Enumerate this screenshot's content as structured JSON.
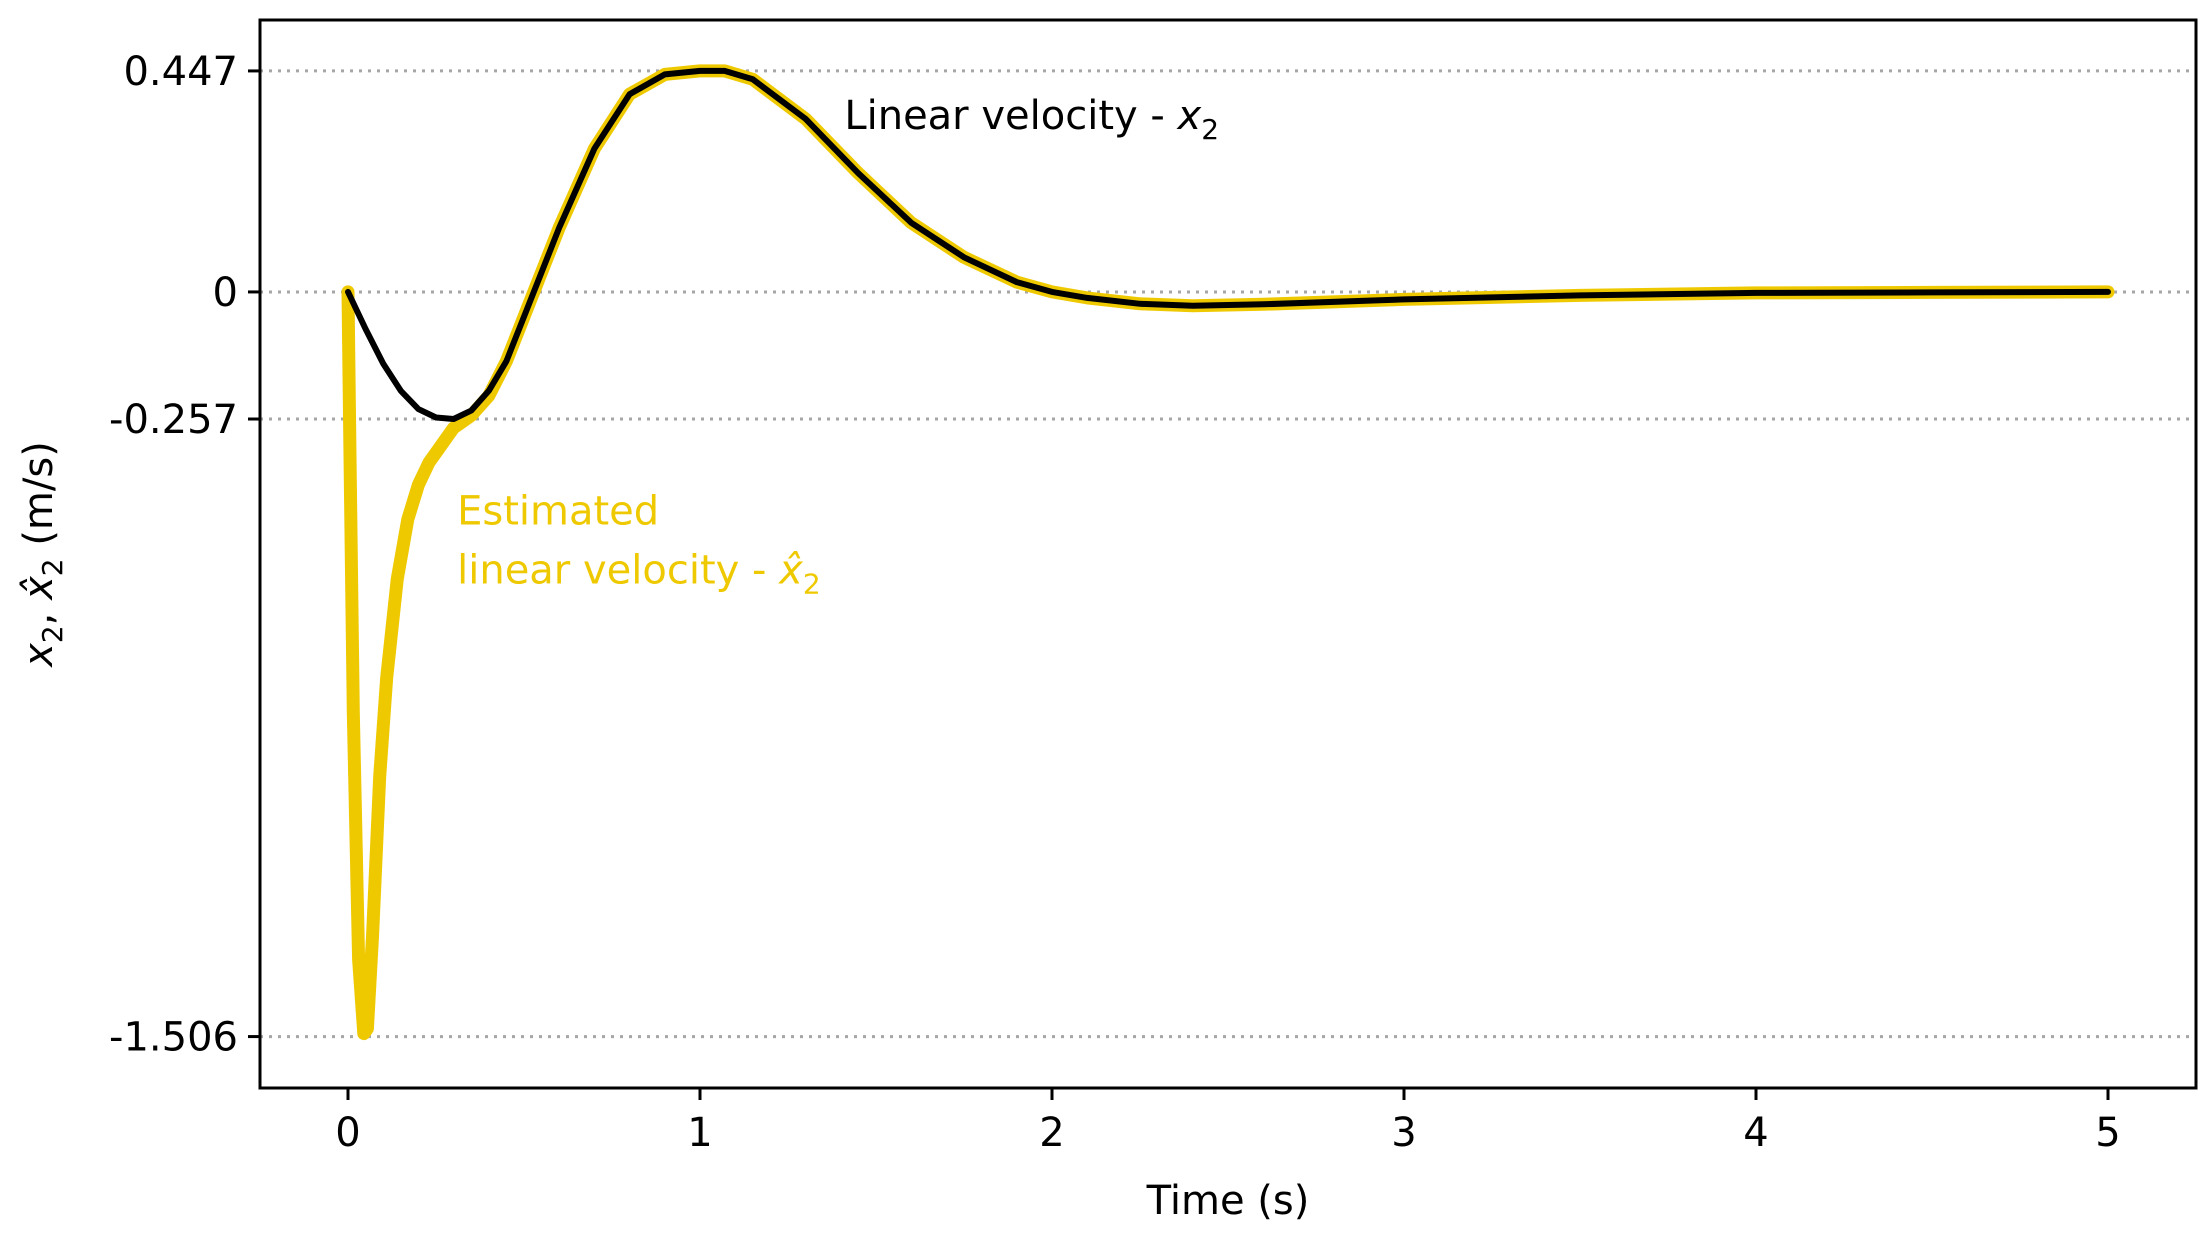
{
  "chart_data": {
    "type": "line",
    "title": "",
    "xlabel": "Time (s)",
    "ylabel": {
      "x2": "x",
      "x2_sub": "2",
      "sep": ", ",
      "hat": "x̂",
      "hat_sub": "2",
      "units": " (m/s)"
    },
    "xlim": [
      -0.25,
      5.25
    ],
    "ylim": [
      -1.61,
      0.55
    ],
    "x_ticks": [
      0,
      1,
      2,
      3,
      4,
      5
    ],
    "x_tick_labels": [
      "0",
      "1",
      "2",
      "3",
      "4",
      "5"
    ],
    "y_ticks": [
      0.447,
      0,
      -0.257,
      -1.506
    ],
    "y_tick_labels": [
      "0.447",
      "0",
      "-0.257",
      "-1.506"
    ],
    "grid": "horizontal dotted at y ticks",
    "series": [
      {
        "name": "Estimated linear velocity - x̂2",
        "color": "#EFC900",
        "x": [
          0,
          0.005,
          0.015,
          0.03,
          0.045,
          0.055,
          0.07,
          0.09,
          0.11,
          0.14,
          0.17,
          0.2,
          0.23,
          0.26,
          0.3,
          0.35,
          0.4,
          0.45,
          0.5,
          0.6,
          0.7,
          0.8,
          0.9,
          1.0,
          1.07,
          1.15,
          1.3,
          1.45,
          1.6,
          1.75,
          1.9,
          2.0,
          2.1,
          2.25,
          2.4,
          2.6,
          3.0,
          3.5,
          4.0,
          4.5,
          5.0
        ],
        "values": [
          0,
          -0.3,
          -0.85,
          -1.35,
          -1.5,
          -1.49,
          -1.3,
          -0.98,
          -0.78,
          -0.58,
          -0.46,
          -0.39,
          -0.345,
          -0.315,
          -0.275,
          -0.25,
          -0.21,
          -0.14,
          -0.05,
          0.13,
          0.29,
          0.4,
          0.44,
          0.447,
          0.447,
          0.43,
          0.35,
          0.24,
          0.14,
          0.07,
          0.02,
          0.0,
          -0.012,
          -0.024,
          -0.028,
          -0.025,
          -0.015,
          -0.007,
          -0.002,
          -0.001,
          0
        ]
      },
      {
        "name": "Linear velocity - x2",
        "color": "#000000",
        "x": [
          0,
          0.05,
          0.1,
          0.15,
          0.2,
          0.25,
          0.3,
          0.35,
          0.4,
          0.45,
          0.5,
          0.6,
          0.7,
          0.8,
          0.9,
          1.0,
          1.07,
          1.15,
          1.3,
          1.45,
          1.6,
          1.75,
          1.9,
          2.0,
          2.1,
          2.25,
          2.4,
          2.6,
          3.0,
          3.5,
          4.0,
          4.5,
          5.0
        ],
        "values": [
          0,
          -0.075,
          -0.145,
          -0.2,
          -0.237,
          -0.254,
          -0.257,
          -0.24,
          -0.2,
          -0.14,
          -0.05,
          0.13,
          0.29,
          0.4,
          0.44,
          0.447,
          0.447,
          0.43,
          0.35,
          0.24,
          0.14,
          0.07,
          0.02,
          0.0,
          -0.012,
          -0.024,
          -0.028,
          -0.025,
          -0.015,
          -0.007,
          -0.002,
          -0.001,
          0
        ]
      }
    ],
    "annotations": [
      {
        "id": "true",
        "text": "Linear velocity - ",
        "var": "x",
        "sub": "2",
        "color": "#000000"
      },
      {
        "id": "est",
        "line1": "Estimated",
        "line2": "linear velocity - ",
        "var": "x̂",
        "sub": "2",
        "color": "#EFC900"
      }
    ]
  }
}
